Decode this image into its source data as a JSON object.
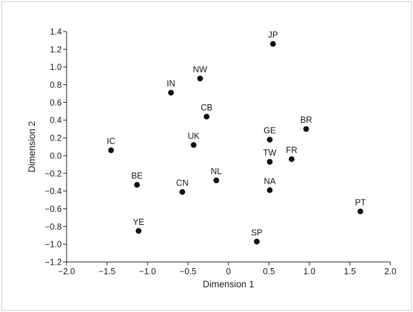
{
  "chart_data": {
    "type": "scatter",
    "title": "",
    "xlabel": "Dimension 1",
    "ylabel": "Dimension 2",
    "xlim": [
      -2.0,
      2.0
    ],
    "ylim": [
      -1.2,
      1.4
    ],
    "xticks": [
      -2.0,
      -1.5,
      -1.0,
      -0.5,
      0,
      0.5,
      1.0,
      1.5,
      2.0
    ],
    "xtick_labels": [
      "−2.0",
      "−1.5",
      "−1.0",
      "−0.5",
      "0",
      "0.5",
      "1.0",
      "1.5",
      "2.0"
    ],
    "yticks": [
      1.4,
      1.2,
      1.0,
      0.8,
      0.6,
      0.4,
      0.2,
      0.0,
      -0.2,
      -0.4,
      -0.6,
      -0.8,
      -1.0,
      -1.2
    ],
    "ytick_labels": [
      "1.4",
      "1.2",
      "1.0",
      "0.8",
      "0.6",
      "0.4",
      "0.2",
      "0.0",
      "−0.2",
      "−0.4",
      "−0.6",
      "−0.8",
      "−1.0",
      "−1.2"
    ],
    "grid": false,
    "marker_color": "#111111",
    "points": [
      {
        "label": "JP",
        "x": 0.55,
        "y": 1.26
      },
      {
        "label": "NW",
        "x": -0.35,
        "y": 0.87
      },
      {
        "label": "IN",
        "x": -0.71,
        "y": 0.71
      },
      {
        "label": "CB",
        "x": -0.27,
        "y": 0.44
      },
      {
        "label": "BR",
        "x": 0.96,
        "y": 0.3
      },
      {
        "label": "GE",
        "x": 0.51,
        "y": 0.18
      },
      {
        "label": "UK",
        "x": -0.43,
        "y": 0.12
      },
      {
        "label": "IC",
        "x": -1.45,
        "y": 0.06
      },
      {
        "label": "TW",
        "x": 0.51,
        "y": -0.07
      },
      {
        "label": "FR",
        "x": 0.78,
        "y": -0.04
      },
      {
        "label": "NL",
        "x": -0.15,
        "y": -0.28
      },
      {
        "label": "BE",
        "x": -1.13,
        "y": -0.33
      },
      {
        "label": "CN",
        "x": -0.57,
        "y": -0.41
      },
      {
        "label": "NA",
        "x": 0.51,
        "y": -0.39
      },
      {
        "label": "PT",
        "x": 1.63,
        "y": -0.63
      },
      {
        "label": "YE",
        "x": -1.11,
        "y": -0.85
      },
      {
        "label": "SP",
        "x": 0.35,
        "y": -0.97
      }
    ]
  }
}
